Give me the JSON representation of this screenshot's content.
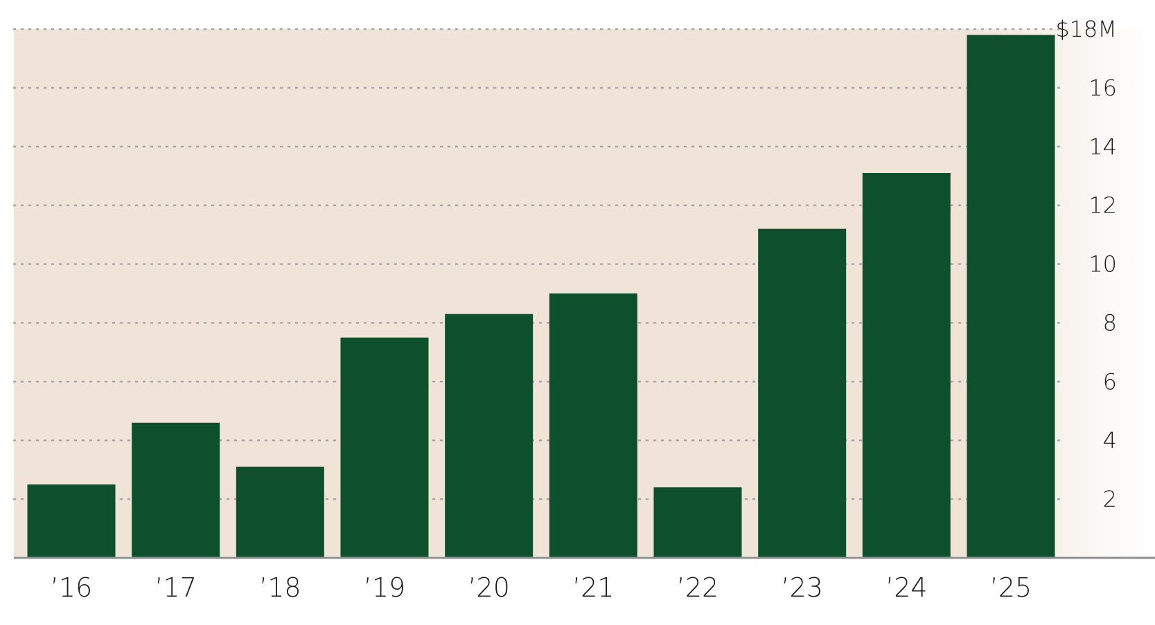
{
  "chart_data": {
    "type": "bar",
    "categories": [
      "’16",
      "’17",
      "’18",
      "’19",
      "’20",
      "’21",
      "’22",
      "’23",
      "’24",
      "’25"
    ],
    "values": [
      2.5,
      4.6,
      3.1,
      7.5,
      8.3,
      9.0,
      2.4,
      11.2,
      13.1,
      17.8
    ],
    "ylim": [
      0,
      18
    ],
    "yticks": [
      2,
      4,
      6,
      8,
      10,
      12,
      14,
      16,
      18
    ],
    "ytick_labels": [
      "2",
      "4",
      "6",
      "8",
      "10",
      "12",
      "14",
      "16",
      "$18M"
    ],
    "title": "",
    "xlabel": "",
    "ylabel": "",
    "grid": "dotted horizontal",
    "colors": {
      "bar": "#0e502d",
      "background": "#f0e3d8",
      "grid": "#a6a6a6",
      "baseline": "#8f8f8f"
    }
  }
}
